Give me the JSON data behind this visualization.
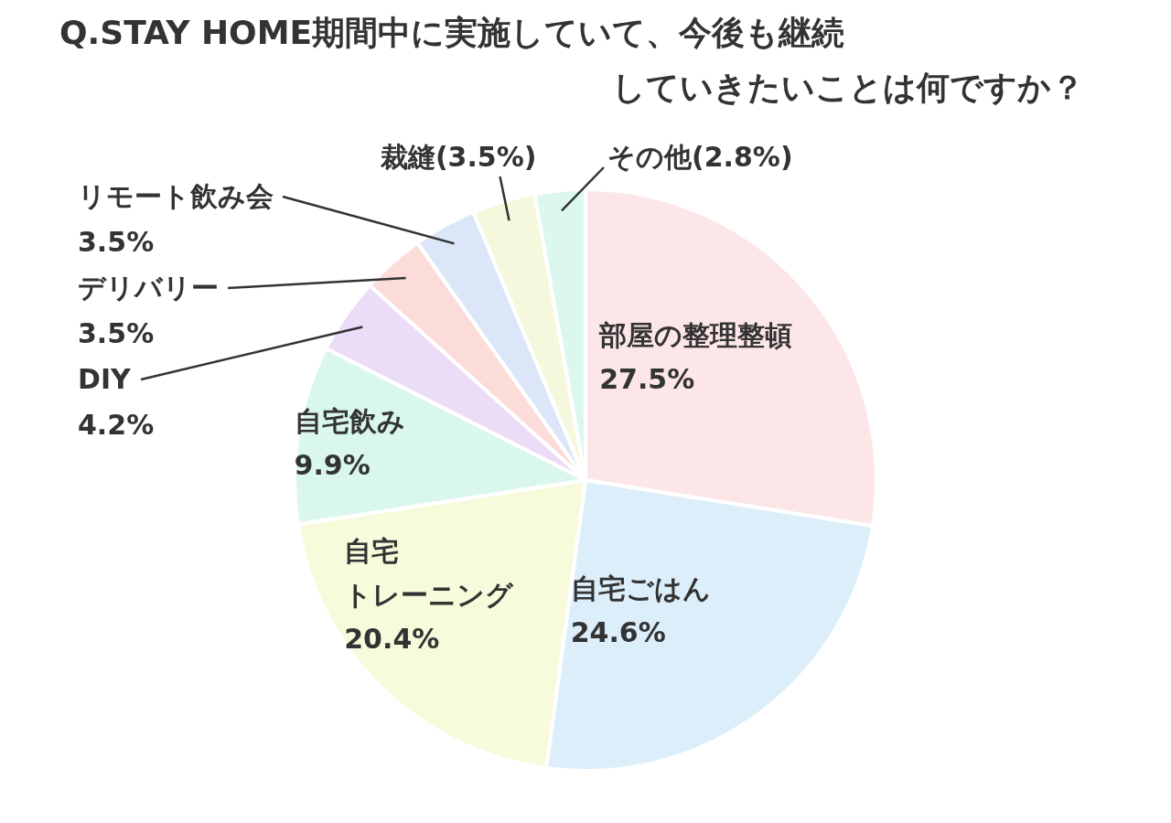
{
  "chart_data": {
    "type": "pie",
    "title": "Q.STAY HOME期間中に実施していて、今後も継続していきたいことは何ですか？",
    "categories": [
      "部屋の整理整頓",
      "自宅ごはん",
      "自宅トレーニング",
      "自宅飲み",
      "DIY",
      "デリバリー",
      "リモート飲み会",
      "裁縫",
      "その他"
    ],
    "values": [
      27.5,
      24.6,
      20.4,
      9.9,
      4.2,
      3.5,
      3.5,
      3.5,
      2.8
    ],
    "value_labels": [
      "27.5%",
      "24.6%",
      "20.4%",
      "9.9%",
      "4.2%",
      "3.5%",
      "3.5%",
      "(3.5%)",
      "(2.8%)"
    ],
    "colors": [
      "#fde6e8",
      "#dbeefa",
      "#f8fadc",
      "#d9f7ec",
      "#ecdcf8",
      "#fbdcd9",
      "#dbe7f8",
      "#f5f8dc",
      "#dcf8ee"
    ]
  }
}
